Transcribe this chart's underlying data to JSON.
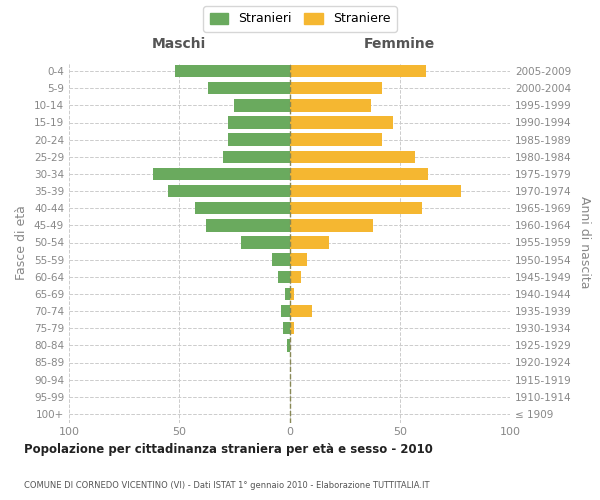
{
  "age_groups": [
    "100+",
    "95-99",
    "90-94",
    "85-89",
    "80-84",
    "75-79",
    "70-74",
    "65-69",
    "60-64",
    "55-59",
    "50-54",
    "45-49",
    "40-44",
    "35-39",
    "30-34",
    "25-29",
    "20-24",
    "15-19",
    "10-14",
    "5-9",
    "0-4"
  ],
  "birth_years": [
    "≤ 1909",
    "1910-1914",
    "1915-1919",
    "1920-1924",
    "1925-1929",
    "1930-1934",
    "1935-1939",
    "1940-1944",
    "1945-1949",
    "1950-1954",
    "1955-1959",
    "1960-1964",
    "1965-1969",
    "1970-1974",
    "1975-1979",
    "1980-1984",
    "1985-1989",
    "1990-1994",
    "1995-1999",
    "2000-2004",
    "2005-2009"
  ],
  "males": [
    0,
    0,
    0,
    0,
    1,
    3,
    4,
    2,
    5,
    8,
    22,
    38,
    43,
    55,
    62,
    30,
    28,
    28,
    25,
    37,
    52
  ],
  "females": [
    0,
    0,
    0,
    0,
    0,
    2,
    10,
    2,
    5,
    8,
    18,
    38,
    60,
    78,
    63,
    57,
    42,
    47,
    37,
    42,
    62
  ],
  "male_color": "#6aaa5e",
  "female_color": "#f5b731",
  "title": "Popolazione per cittadinanza straniera per età e sesso - 2010",
  "subtitle": "COMUNE DI CORNEDO VICENTINO (VI) - Dati ISTAT 1° gennaio 2010 - Elaborazione TUTTITALIA.IT",
  "ylabel_left": "Fasce di età",
  "ylabel_right": "Anni di nascita",
  "header_left": "Maschi",
  "header_right": "Femmine",
  "legend_male": "Stranieri",
  "legend_female": "Straniere",
  "xlim": 100,
  "background_color": "#ffffff",
  "grid_color": "#cccccc",
  "tick_label_color": "#888888"
}
